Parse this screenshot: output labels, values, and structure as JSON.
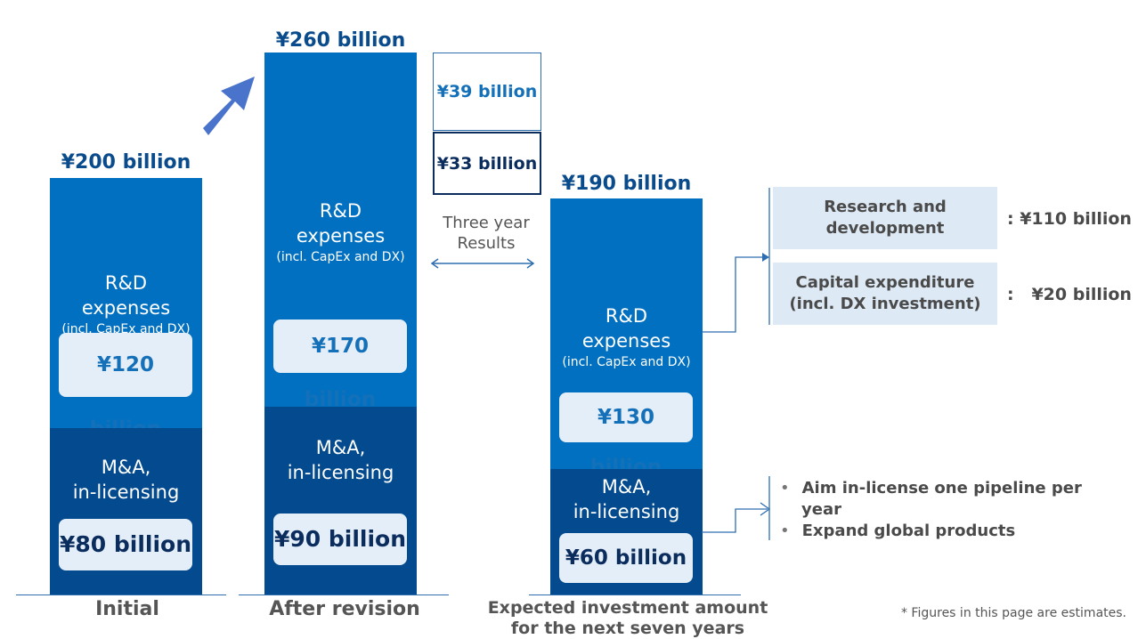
{
  "chart_data": {
    "type": "bar",
    "stacked": true,
    "categories": [
      "Initial",
      "After revision",
      "Expected investment amount for the next seven years"
    ],
    "series": [
      {
        "name": "R&D expenses (incl. CapEx and DX)",
        "values": [
          120,
          170,
          130
        ]
      },
      {
        "name": "M&A, in-licensing",
        "values": [
          80,
          90,
          60
        ]
      }
    ],
    "totals": [
      200,
      260,
      190
    ],
    "unit": "¥ billion"
  },
  "colors": {
    "rd": "#0270c0",
    "ma": "#034a8e",
    "dark_text": "#0b2d5e",
    "mid_text": "#1470b8"
  },
  "labels": {
    "totals": [
      "¥200 billion",
      "¥260 billion",
      "¥190 billion"
    ],
    "rd_title_line1": "R&D",
    "rd_title_line2": "expenses",
    "rd_sub": "(incl. CapEx and DX)",
    "ma_title_line1": "M&A,",
    "ma_title_line2": "in-licensing",
    "rd_values": [
      "¥120 billion",
      "¥170 billion",
      "¥130 billion"
    ],
    "ma_values": [
      "¥80 billion",
      "¥90 billion",
      "¥60 billion"
    ],
    "x_initial": "Initial",
    "x_after": "After revision",
    "x_expected_line1": "Expected investment amount",
    "x_expected_line2": "for the next seven years"
  },
  "three_year": {
    "upper_value": "¥39 billion",
    "lower_value": "¥33 billion",
    "label_line1": "Three year",
    "label_line2": "Results"
  },
  "breakdown": {
    "items": [
      {
        "line1": "Research and",
        "line2": "development",
        "value": ": ¥110 billion"
      },
      {
        "line1": "Capital expenditure",
        "line2": "(incl. DX investment)",
        "value": ":   ¥20 billion"
      }
    ]
  },
  "ma_notes": [
    "Aim in-license one pipeline per",
    "year",
    "Expand global products"
  ],
  "footnote": "* Figures in this page are estimates."
}
